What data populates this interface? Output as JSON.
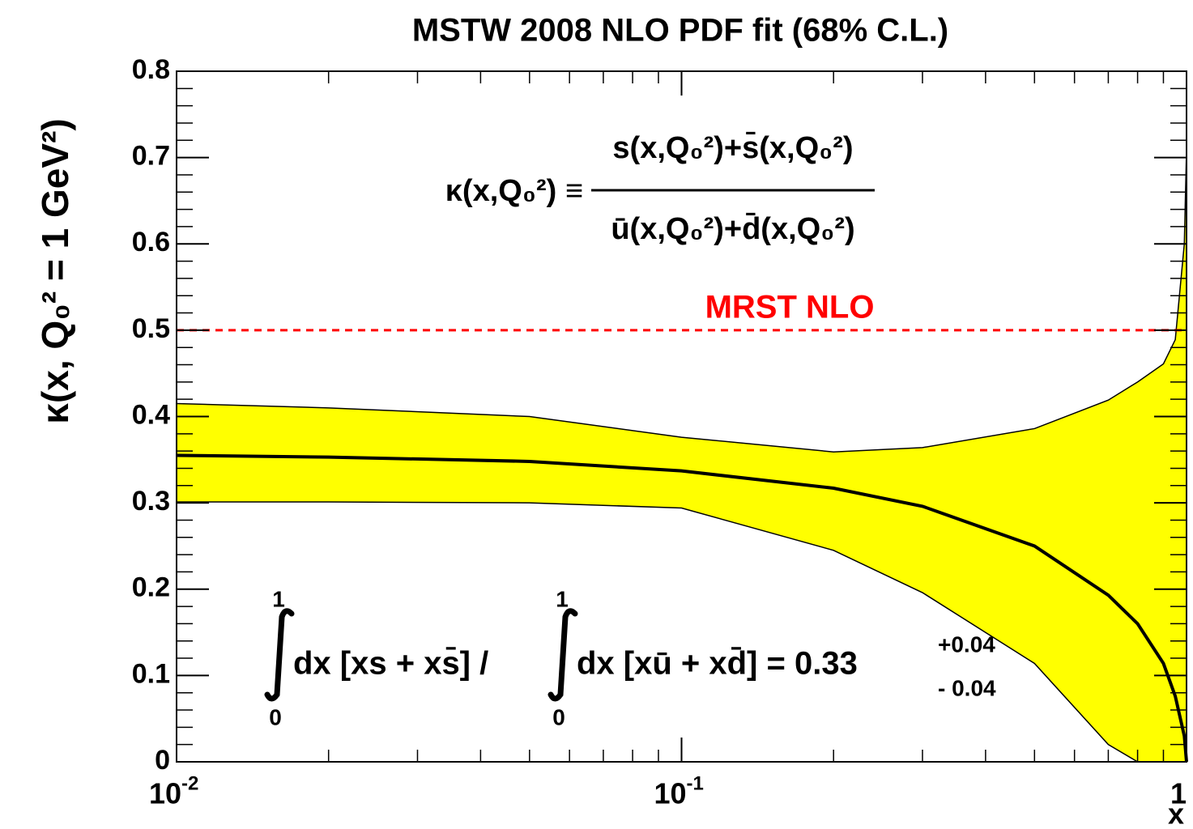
{
  "chart_data": {
    "type": "band",
    "title": "MSTW 2008 NLO PDF fit (68% C.L.)",
    "ylabel": "κ(x, Q₀² = 1 GeV²)",
    "xlabel": "x",
    "xscale": "log",
    "x": [
      0.01,
      0.02,
      0.05,
      0.1,
      0.2,
      0.3,
      0.5,
      0.7,
      0.8,
      0.9,
      0.95,
      0.99,
      1
    ],
    "band": {
      "color": "#ffff00",
      "upper": [
        0.415,
        0.41,
        0.4,
        0.376,
        0.359,
        0.364,
        0.386,
        0.419,
        0.44,
        0.461,
        0.489,
        0.6,
        0.71
      ],
      "lower": [
        0.301,
        0.301,
        0.3,
        0.294,
        0.245,
        0.196,
        0.114,
        0.02,
        0,
        0,
        0,
        0,
        0
      ]
    },
    "line": {
      "color": "#000000",
      "values": [
        0.355,
        0.353,
        0.348,
        0.337,
        0.317,
        0.296,
        0.25,
        0.193,
        0.16,
        0.114,
        0.076,
        0.03,
        0
      ]
    },
    "reference_line": {
      "y": 0.5,
      "label": "MRST NLO",
      "color": "#ff0000"
    },
    "xlim": [
      0.01,
      1
    ],
    "ylim": [
      0,
      0.8
    ],
    "xticks": [
      {
        "value": 0.01,
        "label": "10",
        "exponent": "-2"
      },
      {
        "value": 0.1,
        "label": "10",
        "exponent": "-1"
      },
      1
    ],
    "yticks": [
      0,
      0.1,
      0.2,
      0.3,
      0.4,
      0.5,
      0.6,
      0.7,
      0.8
    ],
    "kappa_definition": {
      "lhs": "κ(x,Q₀²) ≡",
      "numerator": "s(x,Q₀²)+s̄(x,Q₀²)",
      "denominator": "ū(x,Q₀²)+d̄(x,Q₀²)"
    },
    "integral": {
      "upper": "1",
      "lower": "0",
      "left": "dx [xs + xs̄] /",
      "right": "dx [xū + xd̄] = 0.33",
      "plus": "+0.04",
      "minus": "- 0.04"
    }
  }
}
